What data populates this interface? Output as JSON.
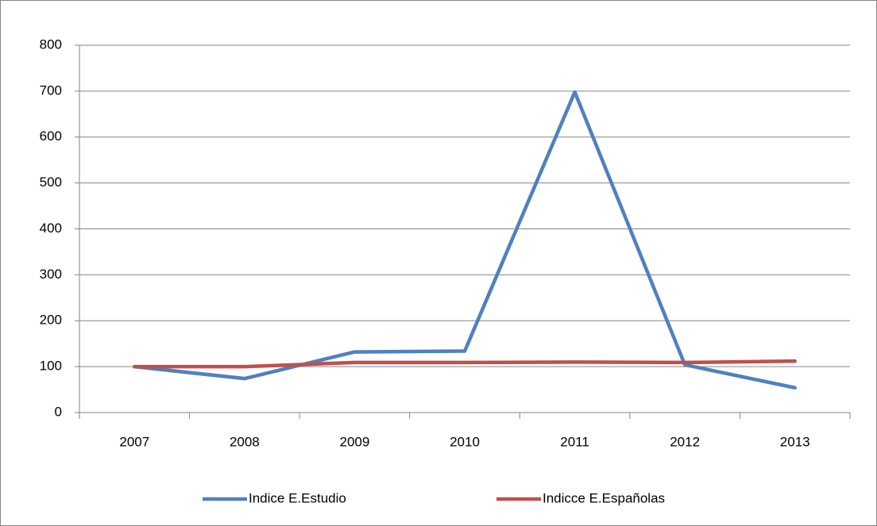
{
  "chart_data": {
    "type": "line",
    "categories": [
      "2007",
      "2008",
      "2009",
      "2010",
      "2011",
      "2012",
      "2013"
    ],
    "series": [
      {
        "name": "Indice E.Estudio",
        "color": "#4f81bd",
        "values": [
          100,
          74,
          132,
          134,
          698,
          104,
          54
        ]
      },
      {
        "name": "Indicce E.Españolas",
        "color": "#c0504d",
        "values": [
          100,
          100,
          109,
          109,
          110,
          109,
          112
        ]
      }
    ],
    "ylim": [
      0,
      800
    ],
    "yticks": [
      0,
      100,
      200,
      300,
      400,
      500,
      600,
      700,
      800
    ],
    "grid": true,
    "legend": "bottom"
  }
}
